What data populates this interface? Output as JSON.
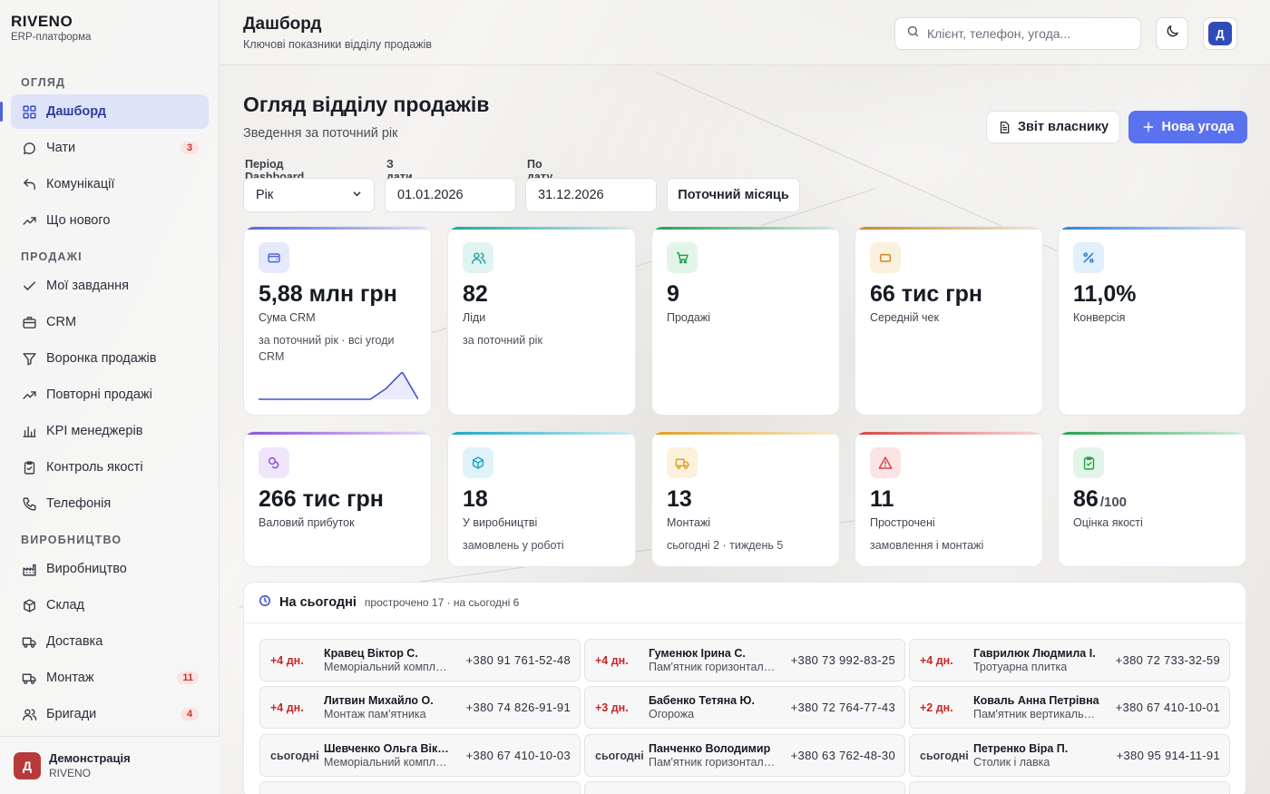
{
  "brand": {
    "name": "RIVENO",
    "sub": "ERP-платформа"
  },
  "sidebar": {
    "sections": [
      {
        "title": "ОГЛЯД",
        "items": [
          {
            "label": "Дашборд",
            "icon": "dashboard-icon",
            "active": true
          },
          {
            "label": "Чати",
            "icon": "chat-icon",
            "badge": "3"
          },
          {
            "label": "Комунікації",
            "icon": "reply-icon"
          },
          {
            "label": "Що нового",
            "icon": "trend-icon"
          }
        ]
      },
      {
        "title": "ПРОДАЖІ",
        "items": [
          {
            "label": "Мої завдання",
            "icon": "check-icon"
          },
          {
            "label": "CRM",
            "icon": "briefcase-icon"
          },
          {
            "label": "Воронка продажів",
            "icon": "filter-icon"
          },
          {
            "label": "Повторні продажі",
            "icon": "trend-icon"
          },
          {
            "label": "KPI менеджерів",
            "icon": "bar-chart-icon"
          },
          {
            "label": "Контроль якості",
            "icon": "clipboard-check-icon"
          },
          {
            "label": "Телефонія",
            "icon": "phone-icon"
          }
        ]
      },
      {
        "title": "ВИРОБНИЦТВО",
        "items": [
          {
            "label": "Виробництво",
            "icon": "factory-icon"
          },
          {
            "label": "Склад",
            "icon": "box-icon"
          },
          {
            "label": "Доставка",
            "icon": "truck-icon"
          },
          {
            "label": "Монтаж",
            "icon": "truck-icon",
            "badge": "11"
          },
          {
            "label": "Бригади",
            "icon": "users-icon",
            "badge": "4"
          }
        ]
      }
    ],
    "footer": {
      "avatar": "Д",
      "name": "Демонстрація",
      "org": "RIVENO"
    }
  },
  "header": {
    "title": "Дашборд",
    "subtitle": "Ключові показники відділу продажів",
    "search_placeholder": "Клієнт, телефон, угода...",
    "avatar": "Д"
  },
  "main": {
    "title": "Огляд відділу продажів",
    "subtitle": "Зведення за поточний рік",
    "report_label": "Звіт власнику",
    "new_deal_label": "Нова угода"
  },
  "filters": {
    "period_label": "Період Dashboard",
    "period_value": "Рік",
    "from_label": "З дати",
    "from_value": "01.01.2026",
    "to_label": "По дату",
    "to_value": "31.12.2026",
    "current_month_label": "Поточний місяць"
  },
  "kpis": [
    {
      "value": "5,88 млн грн",
      "label": "Сума CRM",
      "note": "за поточний рік · всі угоди CRM",
      "icon": "wallet-icon",
      "color": "#4f63e0",
      "bg": "#e6e9fb",
      "sparkline": [
        0,
        0,
        0,
        0,
        0,
        0,
        0,
        0,
        0.4,
        1,
        0
      ]
    },
    {
      "value": "82",
      "label": "Ліди",
      "note": "за поточний рік",
      "icon": "users-icon",
      "color": "#1aa39a",
      "bg": "#e0f4f2"
    },
    {
      "value": "9",
      "label": "Продажі",
      "note": "",
      "icon": "cart-icon",
      "color": "#22a04b",
      "bg": "#e3f5e8"
    },
    {
      "value": "66 тис грн",
      "label": "Середній чек",
      "note": "",
      "icon": "card-icon",
      "color": "#c88a24",
      "bg": "#fbf0dd"
    },
    {
      "value": "11,0%",
      "label": "Конверсія",
      "note": "",
      "icon": "percent-icon",
      "color": "#2f7fe0",
      "bg": "#e2effc"
    },
    {
      "value": "266 тис грн",
      "label": "Валовий прибуток",
      "note": "",
      "icon": "coins-icon",
      "color": "#8a4fd8",
      "bg": "#efe6fb"
    },
    {
      "value": "18",
      "label": "У виробництві",
      "note": "замовлень у роботі",
      "icon": "cube-icon",
      "color": "#17a6c4",
      "bg": "#dff3f8"
    },
    {
      "value": "13",
      "label": "Монтажі",
      "note": "сьогодні 2 · тиждень 5",
      "icon": "truck-icon",
      "color": "#e0a021",
      "bg": "#fcf1dc"
    },
    {
      "value": "11",
      "label": "Прострочені",
      "note": "замовлення і монтажі",
      "icon": "warning-icon",
      "color": "#d64545",
      "bg": "#fbe4e4"
    },
    {
      "value": "86",
      "unit": "/100",
      "label": "Оцінка якості",
      "note": "",
      "icon": "clipboard-check-icon",
      "color": "#22a04b",
      "bg": "#e3f5e8"
    }
  ],
  "today": {
    "title": "На сьогодні",
    "meta": "прострочено 17 · на сьогодні 6",
    "tasks": [
      {
        "due": "+4 дн.",
        "late": true,
        "name": "Кравец Віктор С.",
        "desc": "Меморіальний комплекс",
        "phone": "+380 91 761-52-48"
      },
      {
        "due": "+4 дн.",
        "late": true,
        "name": "Гуменюк Ірина С.",
        "desc": "Пам'ятник горизонтальний",
        "phone": "+380 73 992-83-25"
      },
      {
        "due": "+4 дн.",
        "late": true,
        "name": "Гаврилюк Людмила І.",
        "desc": "Тротуарна плитка",
        "phone": "+380 72 733-32-59"
      },
      {
        "due": "+4 дн.",
        "late": true,
        "name": "Литвин Михайло О.",
        "desc": "Монтаж пам'ятника",
        "phone": "+380 74 826-91-91"
      },
      {
        "due": "+3 дн.",
        "late": true,
        "name": "Бабенко Тетяна Ю.",
        "desc": "Огорожа",
        "phone": "+380 72 764-77-43"
      },
      {
        "due": "+2 дн.",
        "late": true,
        "name": "Коваль Анна Петрівна",
        "desc": "Пам'ятник вертикальний",
        "phone": "+380 67 410-10-01"
      },
      {
        "due": "сьогодні",
        "late": false,
        "name": "Шевченко Ольга Вікторівна",
        "desc": "Меморіальний комплекс",
        "phone": "+380 67 410-10-03"
      },
      {
        "due": "сьогодні",
        "late": false,
        "name": "Панченко Володимир",
        "desc": "Пам'ятник горизонтальний",
        "phone": "+380 63 762-48-30"
      },
      {
        "due": "сьогодні",
        "late": false,
        "name": "Петренко Віра П.",
        "desc": "Столик і лавка",
        "phone": "+380 95 914-11-91"
      }
    ]
  }
}
